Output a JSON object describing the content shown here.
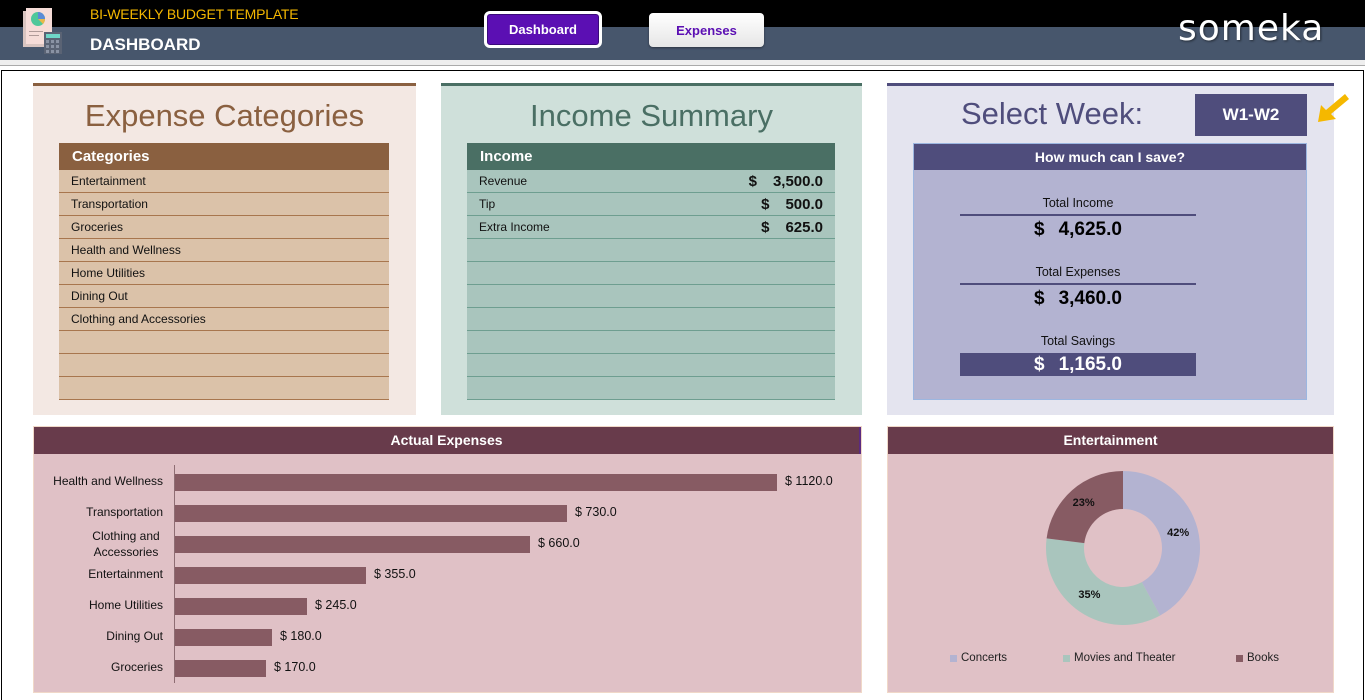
{
  "header": {
    "app_title": "BI-WEEKLY BUDGET TEMPLATE",
    "page_title": "DASHBOARD",
    "nav": [
      {
        "label": "Dashboard",
        "active": true
      },
      {
        "label": "Expenses",
        "active": false
      }
    ],
    "brand": "someka"
  },
  "expense_categories": {
    "title": "Expense Categories",
    "header": "Categories",
    "rows": [
      "Entertainment",
      "Transportation",
      "Groceries",
      "Health and Wellness",
      "Home Utilities",
      "Dining Out",
      "Clothing and Accessories",
      "",
      "",
      ""
    ]
  },
  "income_summary": {
    "title": "Income Summary",
    "header": "Income",
    "rows": [
      {
        "label": "Revenue",
        "currency": "$",
        "value": "3,500.0"
      },
      {
        "label": "Tip",
        "currency": "$",
        "value": "500.0"
      },
      {
        "label": "Extra Income",
        "currency": "$",
        "value": "625.0"
      },
      {
        "label": "",
        "currency": "",
        "value": ""
      },
      {
        "label": "",
        "currency": "",
        "value": ""
      },
      {
        "label": "",
        "currency": "",
        "value": ""
      },
      {
        "label": "",
        "currency": "",
        "value": ""
      },
      {
        "label": "",
        "currency": "",
        "value": ""
      },
      {
        "label": "",
        "currency": "",
        "value": ""
      },
      {
        "label": "",
        "currency": "",
        "value": ""
      }
    ]
  },
  "week": {
    "label": "Select Week:",
    "selected": "W1-W2",
    "arrow_color": "#f5b800"
  },
  "savings": {
    "header": "How much can I save?",
    "total_income_label": "Total Income",
    "total_income": "4,625.0",
    "total_expenses_label": "Total Expenses",
    "total_expenses": "3,460.0",
    "total_savings_label": "Total Savings",
    "total_savings": "1,165.0",
    "currency": "$"
  },
  "colors": {
    "header_dark": "#47566c",
    "accent_purple": "#5b0fb3",
    "expense_brown": "#8a6040",
    "income_green": "#4a6f64",
    "week_purple": "#4f4d7c",
    "chart_header": "#683b4b",
    "bar_fill": "#875b63"
  },
  "chart_data": [
    {
      "type": "bar",
      "orientation": "horizontal",
      "title": "Actual Expenses",
      "categories": [
        "Health and Wellness",
        "Transportation",
        "Clothing and Accessories",
        "Entertainment",
        "Home Utilities",
        "Dining Out",
        "Groceries"
      ],
      "values": [
        1120.0,
        730.0,
        660.0,
        355.0,
        245.0,
        180.0,
        170.0
      ],
      "labels": [
        "$ 1120.0",
        "$ 730.0",
        "$ 660.0",
        "$ 355.0",
        "$ 245.0",
        "$ 180.0",
        "$ 170.0"
      ],
      "xlabel": "",
      "ylabel": "",
      "grid": false
    },
    {
      "type": "pie",
      "variant": "donut",
      "title": "Entertainment",
      "categories": [
        "Concerts",
        "Movies and Theater",
        "Books"
      ],
      "values": [
        42,
        35,
        23
      ],
      "labels": [
        "42%",
        "35%",
        "23%"
      ],
      "colors": [
        "#b3b3d1",
        "#a9c5bd",
        "#875b63"
      ],
      "legend_position": "bottom"
    }
  ]
}
